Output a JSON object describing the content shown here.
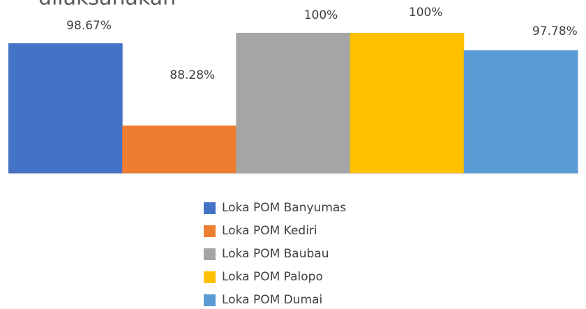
{
  "chart_data": {
    "type": "bar",
    "title": "dilaksanakan",
    "categories": [
      null
    ],
    "ylim": [
      82.2,
      100
    ],
    "series": [
      {
        "name": "Loka POM Banyumas",
        "color": "#4472c4",
        "values": [
          98.67
        ],
        "value_labels": [
          "98.67%"
        ]
      },
      {
        "name": "Loka POM Kediri",
        "color": "#ed7d31",
        "values": [
          88.28
        ],
        "value_labels": [
          "88.28%"
        ]
      },
      {
        "name": "Loka POM Baubau",
        "color": "#a5a5a5",
        "values": [
          100
        ],
        "value_labels": [
          "100%"
        ]
      },
      {
        "name": "Loka POM Palopo",
        "color": "#ffc000",
        "values": [
          100
        ],
        "value_labels": [
          "100%"
        ]
      },
      {
        "name": "Loka POM Dumai",
        "color": "#5b9bd5",
        "values": [
          97.78
        ],
        "value_labels": [
          "97.78%"
        ]
      }
    ]
  }
}
